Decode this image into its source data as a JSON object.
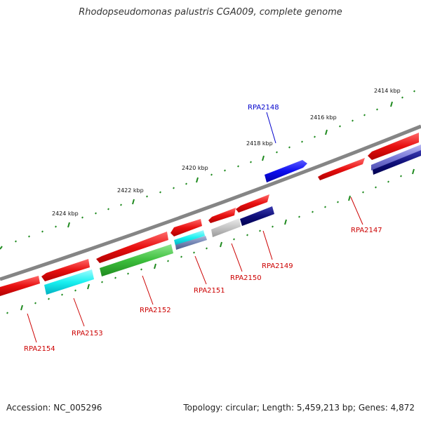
{
  "title": "Rhodopseudomonas palustris CGA009, complete genome",
  "footer": {
    "accession": "Accession: NC_005296",
    "summary": "Topology: circular; Length: 5,459,213 bp; Genes: 4,872"
  },
  "colors": {
    "backbone": "#808080",
    "tick": "#1f8a1f",
    "gene_label": "#cc0000",
    "top_strand_label": "#0000cc"
  },
  "scale_labels": [
    "2414 kbp",
    "2416 kbp",
    "2418 kbp",
    "2420 kbp",
    "2422 kbp",
    "2424 kbp"
  ],
  "genes": [
    {
      "id": "RPA2148",
      "color": "#1010ee",
      "label_color": "#0000cc"
    },
    {
      "id": "RPA2147",
      "color": "#ee1111",
      "label_color": "#cc0000"
    },
    {
      "id": "RPA2149",
      "color": "#ee1111",
      "label_color": "#cc0000"
    },
    {
      "id": "RPA2150",
      "color": "#ee1111",
      "label_color": "#cc0000"
    },
    {
      "id": "RPA2151",
      "color": "#ee1111",
      "label_color": "#cc0000"
    },
    {
      "id": "RPA2152",
      "color": "#ee1111",
      "label_color": "#cc0000"
    },
    {
      "id": "RPA2153",
      "color": "#ee1111",
      "label_color": "#cc0000"
    },
    {
      "id": "RPA2154",
      "color": "#ee1111",
      "label_color": "#cc0000"
    }
  ]
}
